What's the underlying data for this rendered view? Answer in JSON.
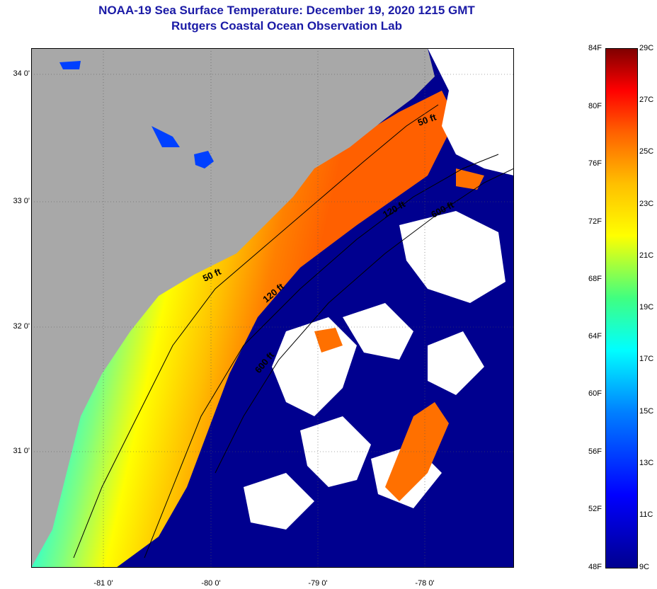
{
  "title": {
    "line1": "NOAA-19 Sea Surface Temperature:  December 19, 2020 1215 GMT",
    "line2": "Rutgers Coastal Ocean Observation Lab"
  },
  "map": {
    "y_labels": [
      "34 0'",
      "33 0'",
      "32 0'",
      "31 0'"
    ],
    "x_labels": [
      "-81 0'",
      "-80 0'",
      "-79 0'",
      "-78 0'"
    ],
    "contours": [
      {
        "label": "50 ft"
      },
      {
        "label": "50 ft"
      },
      {
        "label": "120 ft"
      },
      {
        "label": "120 ft"
      },
      {
        "label": "600 ft"
      },
      {
        "label": "600 ft"
      }
    ],
    "colors": {
      "land": "#a8a8a8",
      "cloud": "#ffffff",
      "cold": "#00008f",
      "warm": "#ff8000"
    }
  },
  "colorbar": {
    "fahrenheit": [
      "84F",
      "80F",
      "76F",
      "72F",
      "68F",
      "64F",
      "60F",
      "56F",
      "52F",
      "48F"
    ],
    "celsius": [
      "29C",
      "27C",
      "25C",
      "23C",
      "21C",
      "19C",
      "17C",
      "15C",
      "13C",
      "11C",
      "9C"
    ],
    "range_f": [
      48,
      84
    ],
    "range_c": [
      9,
      29
    ]
  }
}
